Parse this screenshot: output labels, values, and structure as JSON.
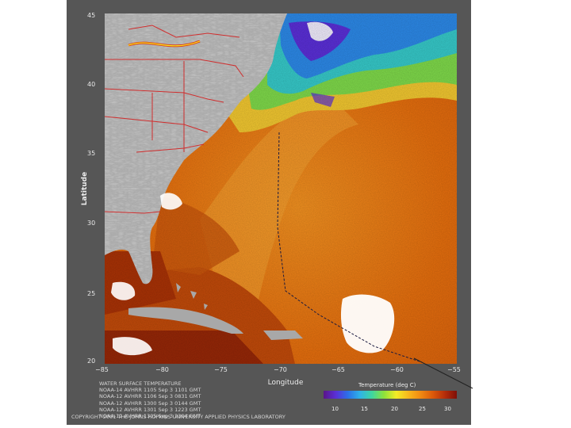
{
  "axes": {
    "ylabel": "Latitude",
    "xlabel": "Longitude",
    "y_ticks": [
      "45",
      "40",
      "35",
      "30",
      "25",
      "20"
    ],
    "x_ticks": [
      "−85",
      "−80",
      "−75",
      "−70",
      "−65",
      "−60",
      "−55"
    ]
  },
  "info_lines": [
    "WATER SURFACE TEMPERATURE",
    "NOAA-14 AVHRR 1105 Sep 3 1101 GMT",
    "NOAA-12 AVHRR 1106 Sep 3 0831 GMT",
    "NOAA-12 AVHRR 1300 Sep 3 0144 GMT",
    "NOAA-12 AVHRR 1301 Sep 3 1223 GMT",
    "NOAA-12 AVHRR 1305 Sep 3 2304 GMT",
    "NOAA-14 AVHRR 1105 Sep 3 1101 GMT"
  ],
  "copyright": "COPYRIGHT 2001 THE JOHNS HOPKINS UNIVERSITY APPLIED PHYSICS LABORATORY",
  "colorbar": {
    "title": "Temperature (deg C)",
    "ticks": [
      "10",
      "15",
      "20",
      "25",
      "30"
    ]
  },
  "colors": {
    "land": "#a8a8a8",
    "warm_water": "#e8780e",
    "hot_water": "#b83a08",
    "cold_water": "#3a6ee0",
    "clouds": "#ffffff",
    "borders": "#d42020"
  }
}
